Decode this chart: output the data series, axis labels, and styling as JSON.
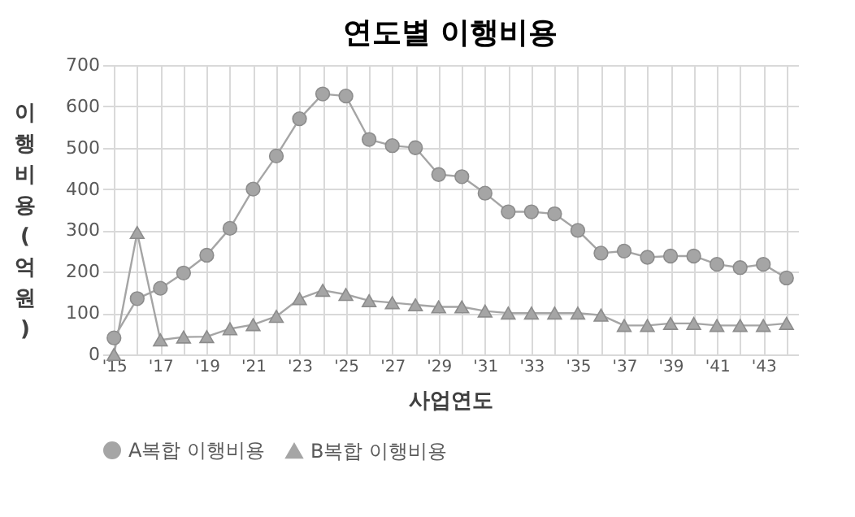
{
  "chart_data": {
    "type": "line",
    "title": "연도별 이행비용",
    "xlabel": "사업연도",
    "ylabel": "이행비용(억원)",
    "categories": [
      "'15",
      null,
      "'17",
      null,
      "'19",
      null,
      "'21",
      null,
      "'23",
      null,
      "'25",
      null,
      "'27",
      null,
      "'29",
      null,
      "'31",
      null,
      "'33",
      null,
      "'35",
      null,
      "'37",
      null,
      "'39",
      null,
      "'41",
      null,
      "'43",
      null
    ],
    "series": [
      {
        "name": "A복합 이행비용",
        "color": "#a5a5a5",
        "marker": "circle",
        "values": [
          40,
          135,
          160,
          197,
          240,
          305,
          400,
          480,
          570,
          630,
          625,
          520,
          505,
          500,
          435,
          430,
          390,
          345,
          345,
          340,
          300,
          245,
          250,
          235,
          238,
          238,
          218,
          210,
          218,
          185
        ]
      },
      {
        "name": "B복합 이행비용",
        "color": "#a5a5a5",
        "marker": "triangle",
        "values": [
          0,
          295,
          35,
          42,
          43,
          62,
          72,
          92,
          135,
          155,
          145,
          130,
          125,
          120,
          115,
          115,
          105,
          100,
          100,
          100,
          100,
          95,
          70,
          70,
          75,
          75,
          70,
          70,
          70,
          75
        ]
      }
    ],
    "ylim": [
      0,
      700
    ],
    "yticks": [
      0,
      100,
      200,
      300,
      400,
      500,
      600,
      700
    ],
    "grid": true,
    "legend": "bottom",
    "line_style": "solid"
  }
}
